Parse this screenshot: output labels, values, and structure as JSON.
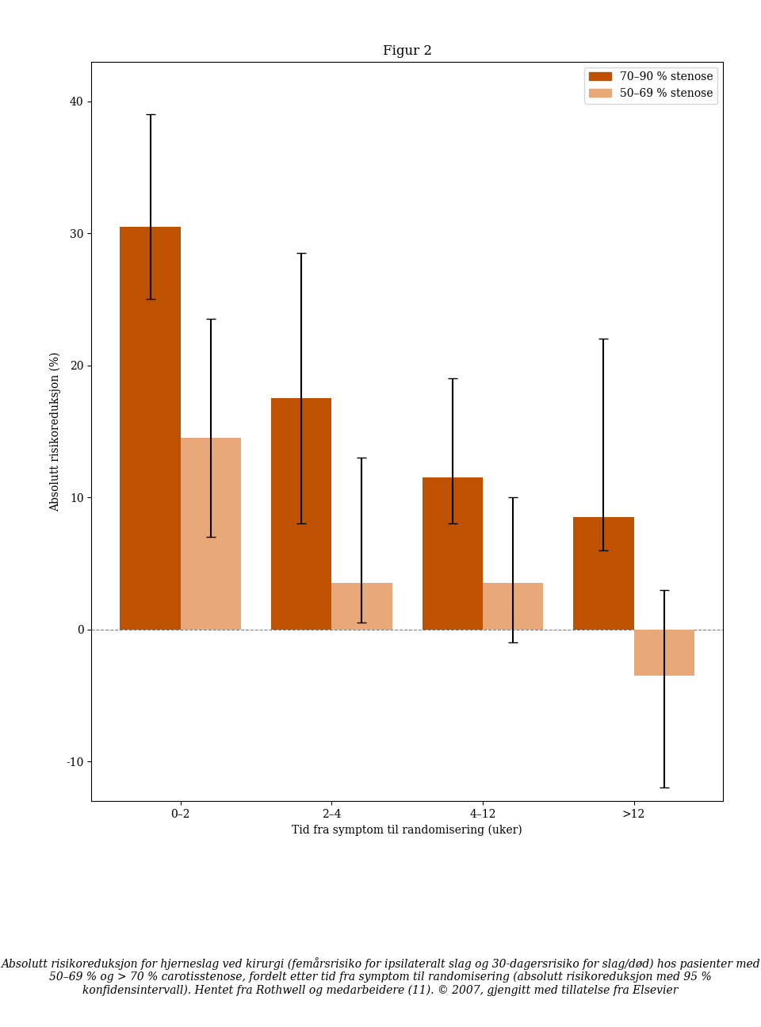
{
  "chart_data": {
    "type": "bar",
    "title": "Figur 2",
    "xlabel": "Tid fra symptom til randomisering (uker)",
    "ylabel": "Absolutt risikoreduksjon (%)",
    "caption": "Absolutt risikoreduksjon for hjerneslag ved kirurgi (femårsrisiko for ipsilateralt slag og 30-dagersrisiko for slag/død) hos pasienter med 50–69 % og > 70 % carotisstenose, fordelt etter tid fra symptom til randomisering (absolutt risikoreduksjon med 95 % konfidensintervall). Hentet fra Rothwell og medarbeidere (11). © 2007, gjengitt med tillatelse fra Elsevier",
    "categories": [
      "0–2",
      "2–4",
      "4–12",
      ">12"
    ],
    "series": [
      {
        "name": "70–90 % stenose",
        "color": "#bf5200",
        "values": [
          30.5,
          17.5,
          11.5,
          8.5
        ],
        "error_low": [
          5.5,
          9.5,
          3.5,
          2.5
        ],
        "error_high": [
          8.5,
          11.0,
          7.5,
          13.5
        ]
      },
      {
        "name": "50–69 % stenose",
        "color": "#e8a87a",
        "values": [
          14.5,
          3.5,
          3.5,
          -3.5
        ],
        "error_low": [
          7.5,
          3.0,
          4.5,
          8.5
        ],
        "error_high": [
          9.0,
          9.5,
          6.5,
          6.5
        ]
      }
    ],
    "ylim": [
      -13,
      43
    ],
    "yticks": [
      -10,
      0,
      10,
      20,
      30,
      40
    ],
    "legend": "upper right",
    "grid": false
  }
}
